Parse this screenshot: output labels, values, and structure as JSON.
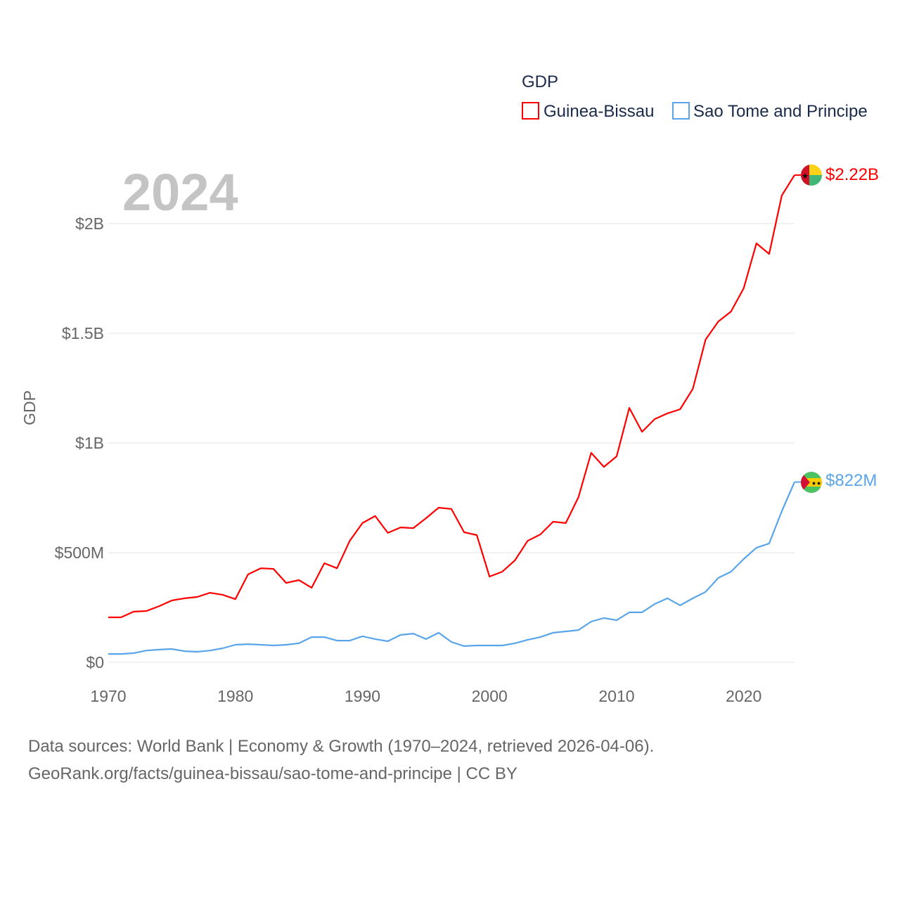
{
  "chart_data": {
    "type": "line",
    "title": "GDP",
    "year_label": "2024",
    "ylabel": "GDP",
    "xlabel": "",
    "xlim": [
      1970,
      2024
    ],
    "ylim": [
      0,
      2300000000
    ],
    "x_ticks": [
      1970,
      1980,
      1990,
      2000,
      2010,
      2020
    ],
    "x_tick_labels": [
      "1970",
      "1980",
      "1990",
      "2000",
      "2010",
      "2020"
    ],
    "y_ticks": [
      0,
      500000000,
      1000000000,
      1500000000,
      2000000000
    ],
    "y_tick_labels": [
      "$0",
      "$500M",
      "$1B",
      "$1.5B",
      "$2B"
    ],
    "grid": true,
    "legend_placement": "top-right",
    "x": [
      1970,
      1971,
      1972,
      1973,
      1974,
      1975,
      1976,
      1977,
      1978,
      1979,
      1980,
      1981,
      1982,
      1983,
      1984,
      1985,
      1986,
      1987,
      1988,
      1989,
      1990,
      1991,
      1992,
      1993,
      1994,
      1995,
      1996,
      1997,
      1998,
      1999,
      2000,
      2001,
      2002,
      2003,
      2004,
      2005,
      2006,
      2007,
      2008,
      2009,
      2010,
      2011,
      2012,
      2013,
      2014,
      2015,
      2016,
      2017,
      2018,
      2019,
      2020,
      2021,
      2022,
      2023,
      2024
    ],
    "series": [
      {
        "name": "Guinea-Bissau",
        "color": "#ff0000",
        "end_label": "$2.22B",
        "flag": "guinea-bissau",
        "values_billion": [
          0.205,
          0.205,
          0.231,
          0.234,
          0.256,
          0.282,
          0.292,
          0.298,
          0.317,
          0.308,
          0.288,
          0.401,
          0.429,
          0.426,
          0.362,
          0.375,
          0.34,
          0.452,
          0.429,
          0.554,
          0.635,
          0.667,
          0.59,
          0.615,
          0.612,
          0.657,
          0.705,
          0.699,
          0.593,
          0.58,
          0.391,
          0.413,
          0.465,
          0.554,
          0.583,
          0.641,
          0.635,
          0.753,
          0.955,
          0.891,
          0.939,
          1.16,
          1.051,
          1.109,
          1.135,
          1.154,
          1.247,
          1.471,
          1.554,
          1.599,
          1.705,
          1.91,
          1.862,
          2.128,
          2.221
        ]
      },
      {
        "name": "Sao Tome and Principe",
        "color": "#5aa5ea",
        "end_label": "$822M",
        "flag": "sao-tome-and-principe",
        "values_billion": [
          0.038,
          0.038,
          0.042,
          0.054,
          0.058,
          0.061,
          0.051,
          0.048,
          0.054,
          0.064,
          0.08,
          0.083,
          0.08,
          0.077,
          0.08,
          0.087,
          0.115,
          0.115,
          0.099,
          0.099,
          0.119,
          0.106,
          0.096,
          0.125,
          0.131,
          0.106,
          0.135,
          0.093,
          0.074,
          0.077,
          0.077,
          0.077,
          0.087,
          0.103,
          0.115,
          0.135,
          0.141,
          0.147,
          0.186,
          0.202,
          0.192,
          0.228,
          0.228,
          0.266,
          0.292,
          0.26,
          0.292,
          0.321,
          0.385,
          0.413,
          0.471,
          0.522,
          0.542,
          0.689,
          0.822
        ]
      }
    ],
    "source_lines": [
      "Data sources: World Bank | Economy & Growth (1970–2024, retrieved 2026-04-06).",
      "GeoRank.org/facts/guinea-bissau/sao-tome-and-principe | CC BY"
    ]
  }
}
